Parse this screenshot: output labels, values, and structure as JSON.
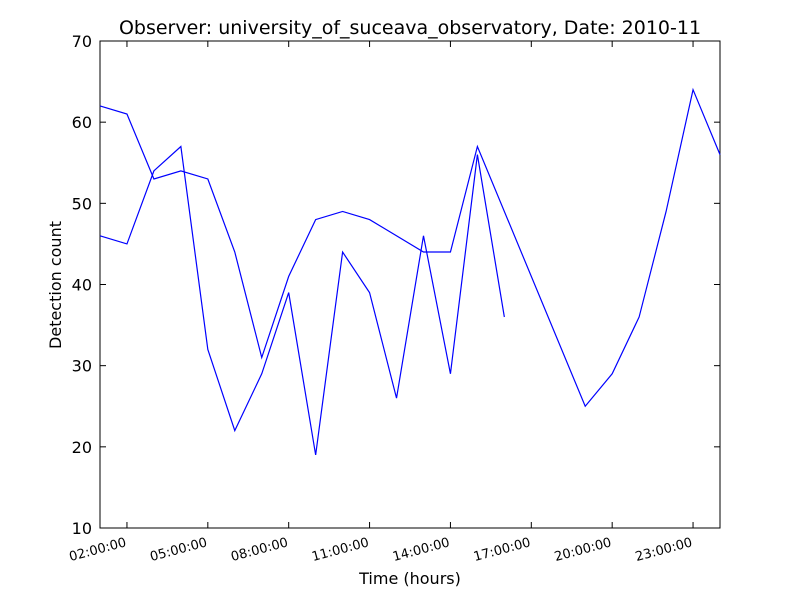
{
  "chart_data": {
    "type": "line",
    "title": "Observer: university_of_suceava_observatory, Date: 2010-11",
    "xlabel": "Time (hours)",
    "ylabel": "Detection count",
    "xlim": [
      1,
      24
    ],
    "ylim": [
      10,
      70
    ],
    "xticks": [
      {
        "value": 2,
        "label": "02:00:00"
      },
      {
        "value": 5,
        "label": "05:00:00"
      },
      {
        "value": 8,
        "label": "08:00:00"
      },
      {
        "value": 11,
        "label": "11:00:00"
      },
      {
        "value": 14,
        "label": "14:00:00"
      },
      {
        "value": 17,
        "label": "17:00:00"
      },
      {
        "value": 20,
        "label": "20:00:00"
      },
      {
        "value": 23,
        "label": "23:00:00"
      }
    ],
    "yticks": [
      10,
      20,
      30,
      40,
      50,
      60,
      70
    ],
    "grid": false,
    "series": [
      {
        "color": "#0000ff",
        "x": [
          1,
          2,
          3,
          4,
          5,
          6,
          7,
          8,
          9,
          10,
          11,
          13,
          14,
          15,
          19,
          20,
          21,
          22,
          23,
          24
        ],
        "values": [
          62,
          61,
          53,
          54,
          53,
          44,
          31,
          41,
          48,
          49,
          48,
          44,
          44,
          57,
          25,
          29,
          36,
          49,
          64,
          56
        ]
      },
      {
        "color": "#0000ff",
        "x": [
          1,
          2,
          3,
          4,
          5,
          6,
          7,
          8,
          9,
          10,
          11,
          12,
          13,
          14,
          15,
          16
        ],
        "values": [
          46,
          45,
          54,
          57,
          32,
          22,
          29,
          39,
          19,
          44,
          39,
          26,
          46,
          29,
          56,
          36
        ]
      }
    ]
  }
}
